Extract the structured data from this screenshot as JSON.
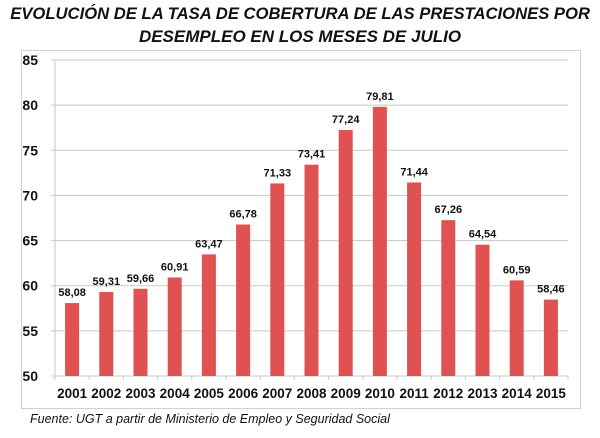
{
  "chart_data": {
    "type": "bar",
    "title": "EVOLUCIÓN DE LA TASA DE COBERTURA DE LAS PRESTACIONES POR DESEMPLEO EN LOS MESES DE JULIO",
    "title_lines": [
      "EVOLUCIÓN DE LA TASA DE COBERTURA DE LAS PRESTACIONES POR",
      "DESEMPLEO EN LOS MESES DE JULIO"
    ],
    "categories": [
      "2001",
      "2002",
      "2003",
      "2004",
      "2005",
      "2006",
      "2007",
      "2008",
      "2009",
      "2010",
      "2011",
      "2012",
      "2013",
      "2014",
      "2015"
    ],
    "values": [
      58.08,
      59.31,
      59.66,
      60.91,
      63.47,
      66.78,
      71.33,
      73.41,
      77.24,
      79.81,
      71.44,
      67.26,
      64.54,
      60.59,
      58.46
    ],
    "data_labels": [
      "58,08",
      "59,31",
      "59,66",
      "60,91",
      "63,47",
      "66,78",
      "71,33",
      "73,41",
      "77,24",
      "79,81",
      "71,44",
      "67,26",
      "64,54",
      "60,59",
      "58,46"
    ],
    "ylim": [
      50,
      85
    ],
    "yticks": [
      "50",
      "55",
      "60",
      "65",
      "70",
      "75",
      "80",
      "85"
    ],
    "xlabel": "",
    "ylabel": "",
    "grid": true,
    "legend": "none",
    "bar_color": "#e05252",
    "source": "Fuente:  UGT a partir de Ministerio de Empleo y Seguridad Social"
  }
}
